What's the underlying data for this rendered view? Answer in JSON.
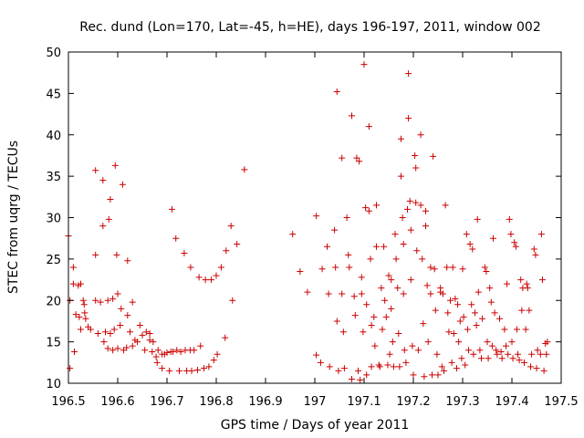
{
  "chart_data": {
    "type": "scatter",
    "title": "Rec. dund (Lon=170, Lat=-45, h=HE), days 196-197, 2011, window 002",
    "xlabel": "GPS time / Days of year 2011",
    "ylabel": "STEC from uqrg / TECUs",
    "xlim": [
      196.5,
      197.5
    ],
    "ylim": [
      10,
      50
    ],
    "xticks": [
      196.5,
      196.6,
      196.7,
      196.8,
      196.9,
      197,
      197.1,
      197.2,
      197.3,
      197.4,
      197.5
    ],
    "xtick_labels": [
      "196.5",
      "196.6",
      "196.7",
      "196.8",
      "196.9",
      "197",
      "197.1",
      "197.2",
      "197.3",
      "197.4",
      "197.5"
    ],
    "yticks": [
      10,
      15,
      20,
      25,
      30,
      35,
      40,
      45,
      50
    ],
    "ytick_labels": [
      "10",
      "15",
      "20",
      "25",
      "30",
      "35",
      "40",
      "45",
      "50"
    ],
    "grid": false,
    "legend": "none",
    "marker": "+",
    "color": "#cc0000",
    "series": [
      {
        "points": [
          [
            196.5,
            27.8
          ],
          [
            196.503,
            20.0
          ],
          [
            196.503,
            11.8
          ],
          [
            196.51,
            24.0
          ],
          [
            196.51,
            22.0
          ],
          [
            196.512,
            13.8
          ],
          [
            196.515,
            18.3
          ],
          [
            196.52,
            21.8
          ],
          [
            196.522,
            18.0
          ],
          [
            196.525,
            22.0
          ],
          [
            196.525,
            16.5
          ],
          [
            196.53,
            20.0
          ],
          [
            196.532,
            19.5
          ],
          [
            196.533,
            18.5
          ],
          [
            196.535,
            17.8
          ],
          [
            196.54,
            16.8
          ],
          [
            196.545,
            16.5
          ],
          [
            196.555,
            35.7
          ],
          [
            196.555,
            25.5
          ],
          [
            196.555,
            20.0
          ],
          [
            196.56,
            16.0
          ],
          [
            196.565,
            19.8
          ],
          [
            196.57,
            29.0
          ],
          [
            196.57,
            34.5
          ],
          [
            196.572,
            15.0
          ],
          [
            196.575,
            16.2
          ],
          [
            196.58,
            20.0
          ],
          [
            196.58,
            14.2
          ],
          [
            196.582,
            29.8
          ],
          [
            196.585,
            16.0
          ],
          [
            196.585,
            32.2
          ],
          [
            196.59,
            14.0
          ],
          [
            196.59,
            20.2
          ],
          [
            196.593,
            16.5
          ],
          [
            196.595,
            36.3
          ],
          [
            196.598,
            25.5
          ],
          [
            196.6,
            14.2
          ],
          [
            196.6,
            20.8
          ],
          [
            196.605,
            17.0
          ],
          [
            196.607,
            19.0
          ],
          [
            196.61,
            34.0
          ],
          [
            196.612,
            14.0
          ],
          [
            196.618,
            14.3
          ],
          [
            196.62,
            24.8
          ],
          [
            196.62,
            18.2
          ],
          [
            196.625,
            16.2
          ],
          [
            196.63,
            14.5
          ],
          [
            196.63,
            19.8
          ],
          [
            196.635,
            15.2
          ],
          [
            196.64,
            15.0
          ],
          [
            196.645,
            17.0
          ],
          [
            196.65,
            15.8
          ],
          [
            196.655,
            14.0
          ],
          [
            196.658,
            16.2
          ],
          [
            196.665,
            16.0
          ],
          [
            196.665,
            15.2
          ],
          [
            196.67,
            13.8
          ],
          [
            196.672,
            15.0
          ],
          [
            196.678,
            13.2
          ],
          [
            196.68,
            12.5
          ],
          [
            196.682,
            14.0
          ],
          [
            196.69,
            13.5
          ],
          [
            196.69,
            11.8
          ],
          [
            196.695,
            13.5
          ],
          [
            196.7,
            13.7
          ],
          [
            196.705,
            11.5
          ],
          [
            196.708,
            13.8
          ],
          [
            196.71,
            31.0
          ],
          [
            196.712,
            13.8
          ],
          [
            196.718,
            27.5
          ],
          [
            196.72,
            14.0
          ],
          [
            196.725,
            11.5
          ],
          [
            196.728,
            13.8
          ],
          [
            196.735,
            25.7
          ],
          [
            196.737,
            14.0
          ],
          [
            196.74,
            11.5
          ],
          [
            196.747,
            14.0
          ],
          [
            196.748,
            24.0
          ],
          [
            196.75,
            11.5
          ],
          [
            196.755,
            14.0
          ],
          [
            196.762,
            11.6
          ],
          [
            196.765,
            22.8
          ],
          [
            196.768,
            14.5
          ],
          [
            196.775,
            11.8
          ],
          [
            196.778,
            22.5
          ],
          [
            196.785,
            12.0
          ],
          [
            196.79,
            22.5
          ],
          [
            196.795,
            12.8
          ],
          [
            196.8,
            23.0
          ],
          [
            196.802,
            13.5
          ],
          [
            196.81,
            24.0
          ],
          [
            196.818,
            15.5
          ],
          [
            196.82,
            26.0
          ],
          [
            196.83,
            29.0
          ],
          [
            196.833,
            20.0
          ],
          [
            196.842,
            26.8
          ],
          [
            196.857,
            35.8
          ],
          [
            196.955,
            28.0
          ],
          [
            196.97,
            23.5
          ],
          [
            196.985,
            21.0
          ],
          [
            197.003,
            30.2
          ],
          [
            197.003,
            13.4
          ],
          [
            197.012,
            12.5
          ],
          [
            197.015,
            23.8
          ],
          [
            197.025,
            26.5
          ],
          [
            197.028,
            20.8
          ],
          [
            197.03,
            12.0
          ],
          [
            197.04,
            28.5
          ],
          [
            197.042,
            24.0
          ],
          [
            197.045,
            45.2
          ],
          [
            197.045,
            17.5
          ],
          [
            197.048,
            11.5
          ],
          [
            197.055,
            37.2
          ],
          [
            197.055,
            20.8
          ],
          [
            197.058,
            16.2
          ],
          [
            197.06,
            11.8
          ],
          [
            197.065,
            30.0
          ],
          [
            197.068,
            25.5
          ],
          [
            197.07,
            24.0
          ],
          [
            197.075,
            42.3
          ],
          [
            197.075,
            10.5
          ],
          [
            197.08,
            20.5
          ],
          [
            197.082,
            18.2
          ],
          [
            197.085,
            37.2
          ],
          [
            197.088,
            11.5
          ],
          [
            197.09,
            36.8
          ],
          [
            197.092,
            10.4
          ],
          [
            197.095,
            22.8
          ],
          [
            197.095,
            20.8
          ],
          [
            197.098,
            16.2
          ],
          [
            197.1,
            48.5
          ],
          [
            197.103,
            31.2
          ],
          [
            197.105,
            19.5
          ],
          [
            197.105,
            11.0
          ],
          [
            197.11,
            41.0
          ],
          [
            197.11,
            30.8
          ],
          [
            197.113,
            25.0
          ],
          [
            197.115,
            17.0
          ],
          [
            197.115,
            12.0
          ],
          [
            197.12,
            18.0
          ],
          [
            197.122,
            14.5
          ],
          [
            197.125,
            31.5
          ],
          [
            197.125,
            26.5
          ],
          [
            197.13,
            12.2
          ],
          [
            197.132,
            12.0
          ],
          [
            197.135,
            21.5
          ],
          [
            197.137,
            16.5
          ],
          [
            197.14,
            26.5
          ],
          [
            197.142,
            20.0
          ],
          [
            197.145,
            18.0
          ],
          [
            197.148,
            12.2
          ],
          [
            197.15,
            23.0
          ],
          [
            197.152,
            13.5
          ],
          [
            197.155,
            22.5
          ],
          [
            197.155,
            19.0
          ],
          [
            197.158,
            15.0
          ],
          [
            197.16,
            12.0
          ],
          [
            197.163,
            28.0
          ],
          [
            197.165,
            25.0
          ],
          [
            197.168,
            21.5
          ],
          [
            197.17,
            16.0
          ],
          [
            197.172,
            12.0
          ],
          [
            197.175,
            39.5
          ],
          [
            197.175,
            35.0
          ],
          [
            197.178,
            30.0
          ],
          [
            197.18,
            26.8
          ],
          [
            197.18,
            20.8
          ],
          [
            197.182,
            14.0
          ],
          [
            197.185,
            12.5
          ],
          [
            197.188,
            31.0
          ],
          [
            197.19,
            47.4
          ],
          [
            197.19,
            42.0
          ],
          [
            197.193,
            32.0
          ],
          [
            197.195,
            28.5
          ],
          [
            197.195,
            22.5
          ],
          [
            197.198,
            14.5
          ],
          [
            197.2,
            11.0
          ],
          [
            197.203,
            37.5
          ],
          [
            197.205,
            36.0
          ],
          [
            197.205,
            31.8
          ],
          [
            197.207,
            26.0
          ],
          [
            197.21,
            14.0
          ],
          [
            197.215,
            40.0
          ],
          [
            197.215,
            31.5
          ],
          [
            197.218,
            25.0
          ],
          [
            197.22,
            17.2
          ],
          [
            197.222,
            10.8
          ],
          [
            197.225,
            30.8
          ],
          [
            197.225,
            29.0
          ],
          [
            197.228,
            21.8
          ],
          [
            197.23,
            15.0
          ],
          [
            197.235,
            24.0
          ],
          [
            197.235,
            20.8
          ],
          [
            197.238,
            11.0
          ],
          [
            197.24,
            37.4
          ],
          [
            197.243,
            23.8
          ],
          [
            197.245,
            18.8
          ],
          [
            197.248,
            13.5
          ],
          [
            197.25,
            11.0
          ],
          [
            197.255,
            21.5
          ],
          [
            197.255,
            21.0
          ],
          [
            197.258,
            12.0
          ],
          [
            197.26,
            20.8
          ],
          [
            197.262,
            11.5
          ],
          [
            197.265,
            31.5
          ],
          [
            197.268,
            24.0
          ],
          [
            197.27,
            18.5
          ],
          [
            197.272,
            16.2
          ],
          [
            197.275,
            20.0
          ],
          [
            197.278,
            12.5
          ],
          [
            197.28,
            24.0
          ],
          [
            197.282,
            16.0
          ],
          [
            197.285,
            20.2
          ],
          [
            197.288,
            11.8
          ],
          [
            197.29,
            19.5
          ],
          [
            197.292,
            15.0
          ],
          [
            197.295,
            17.5
          ],
          [
            197.298,
            13.0
          ],
          [
            197.3,
            23.8
          ],
          [
            197.302,
            18.0
          ],
          [
            197.305,
            12.2
          ],
          [
            197.308,
            28.0
          ],
          [
            197.31,
            16.5
          ],
          [
            197.312,
            14.0
          ],
          [
            197.315,
            26.8
          ],
          [
            197.318,
            19.5
          ],
          [
            197.32,
            26.2
          ],
          [
            197.322,
            13.5
          ],
          [
            197.325,
            18.5
          ],
          [
            197.328,
            17.0
          ],
          [
            197.33,
            29.8
          ],
          [
            197.332,
            21.0
          ],
          [
            197.335,
            14.0
          ],
          [
            197.338,
            13.0
          ],
          [
            197.34,
            17.8
          ],
          [
            197.345,
            24.0
          ],
          [
            197.348,
            23.5
          ],
          [
            197.35,
            15.0
          ],
          [
            197.352,
            13.0
          ],
          [
            197.355,
            21.5
          ],
          [
            197.358,
            19.8
          ],
          [
            197.36,
            14.5
          ],
          [
            197.362,
            27.5
          ],
          [
            197.365,
            18.5
          ],
          [
            197.368,
            14.0
          ],
          [
            197.37,
            13.5
          ],
          [
            197.375,
            17.8
          ],
          [
            197.378,
            13.8
          ],
          [
            197.38,
            13.0
          ],
          [
            197.385,
            16.5
          ],
          [
            197.388,
            14.5
          ],
          [
            197.39,
            22.0
          ],
          [
            197.392,
            13.5
          ],
          [
            197.395,
            29.8
          ],
          [
            197.398,
            28.0
          ],
          [
            197.4,
            15.0
          ],
          [
            197.402,
            13.0
          ],
          [
            197.405,
            27.0
          ],
          [
            197.408,
            26.5
          ],
          [
            197.41,
            16.5
          ],
          [
            197.412,
            13.5
          ],
          [
            197.415,
            12.8
          ],
          [
            197.418,
            22.5
          ],
          [
            197.42,
            18.8
          ],
          [
            197.422,
            21.5
          ],
          [
            197.425,
            12.5
          ],
          [
            197.428,
            16.5
          ],
          [
            197.43,
            22.0
          ],
          [
            197.432,
            21.5
          ],
          [
            197.435,
            18.8
          ],
          [
            197.438,
            12.0
          ],
          [
            197.44,
            13.5
          ],
          [
            197.445,
            26.2
          ],
          [
            197.448,
            25.5
          ],
          [
            197.45,
            11.8
          ],
          [
            197.452,
            14.0
          ],
          [
            197.458,
            13.5
          ],
          [
            197.46,
            28.0
          ],
          [
            197.462,
            22.5
          ],
          [
            197.465,
            11.5
          ],
          [
            197.468,
            14.8
          ],
          [
            197.47,
            13.5
          ],
          [
            197.472,
            15.0
          ]
        ]
      }
    ]
  }
}
